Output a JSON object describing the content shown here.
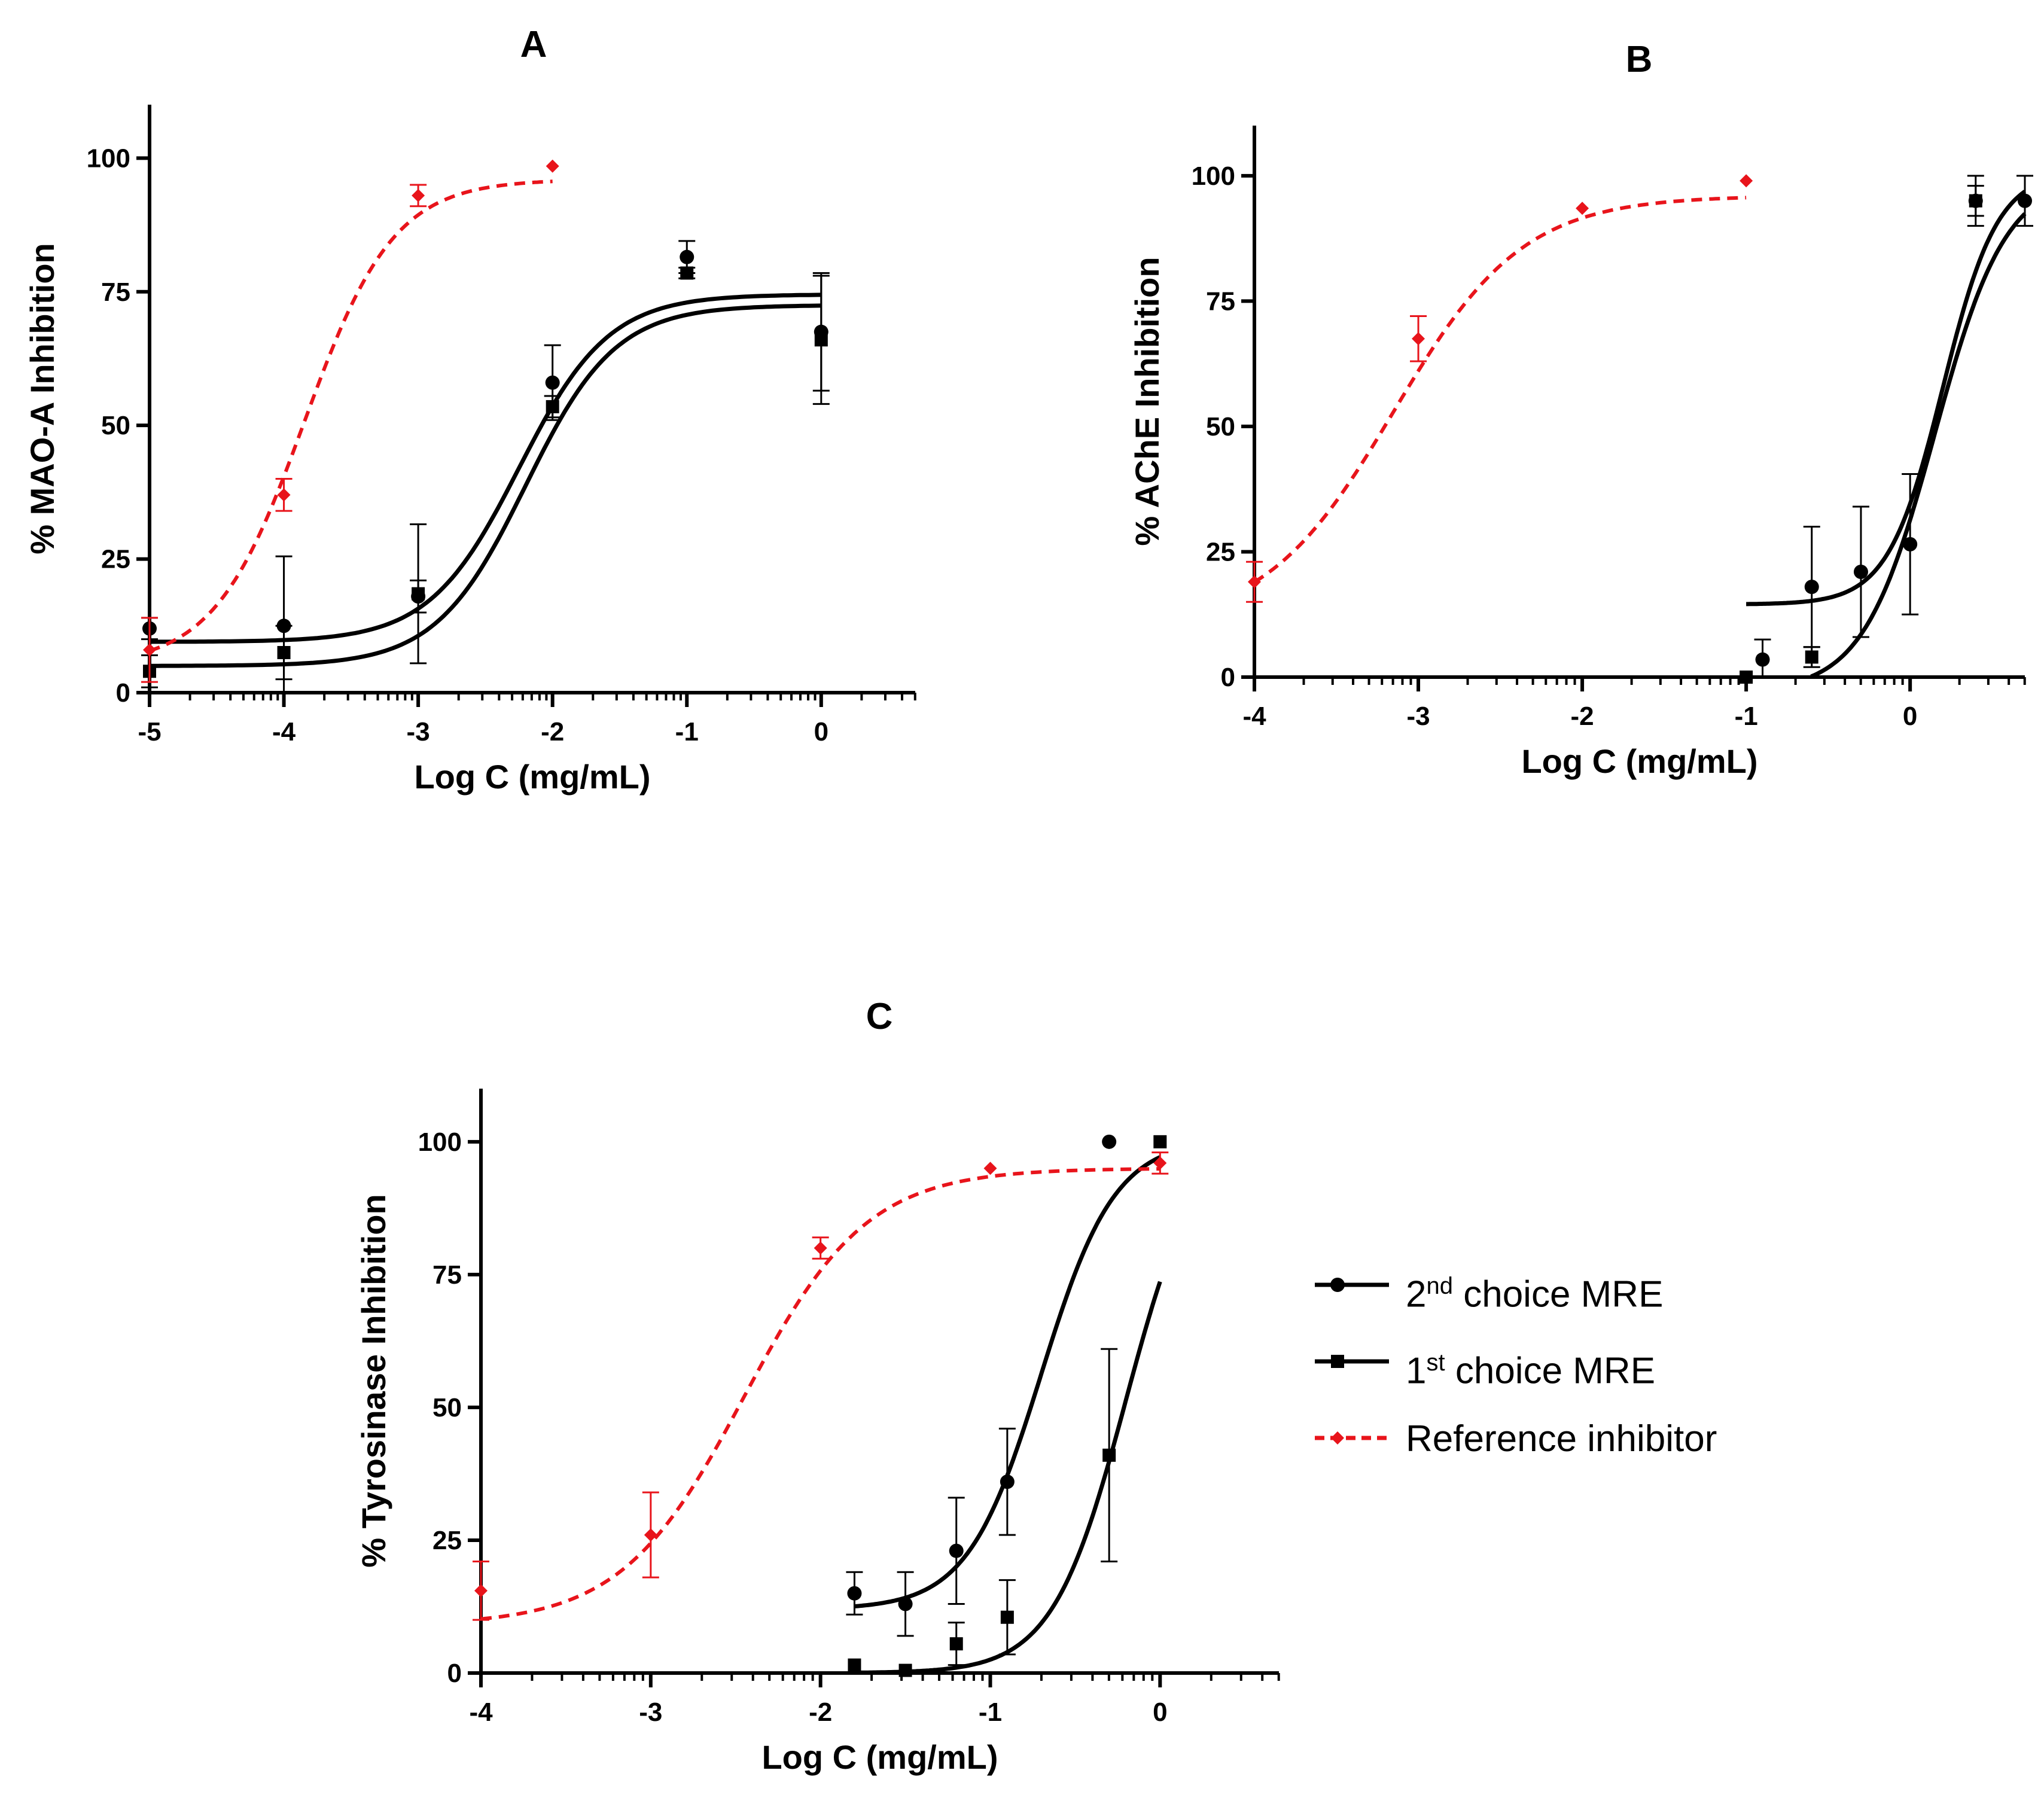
{
  "colors": {
    "sample": "#000000",
    "reference": "#e8141b"
  },
  "legend": {
    "items": [
      {
        "base": "2",
        "sup": "nd",
        "rest": " choice MRE",
        "marker": "circle-marker",
        "style": "solid"
      },
      {
        "base": "1",
        "sup": "st",
        "rest": " choice MRE",
        "marker": "square-marker",
        "style": "solid"
      },
      {
        "base": "Reference inhibitor",
        "sup": "",
        "rest": "",
        "marker": "diamond-marker",
        "style": "dashed"
      }
    ]
  },
  "chart_data": [
    {
      "id": "A",
      "type": "scatter",
      "title": "A",
      "xlabel": "Log C (mg/mL)",
      "ylabel": "% MAO-A Inhibition",
      "xlim": [
        -5,
        0.7
      ],
      "ylim": [
        0,
        110
      ],
      "xticks": [
        -5,
        -4,
        -3,
        -2,
        -1,
        0
      ],
      "xtick_labels": [
        "-5",
        "-4",
        "-3",
        "-2",
        "-1",
        "0"
      ],
      "yticks": [
        0,
        25,
        50,
        75,
        100
      ],
      "ytick_labels": [
        "0",
        "25",
        "50",
        "75",
        "100"
      ],
      "series": [
        {
          "name": "2nd choice MRE",
          "marker": "circle",
          "x": [
            -5,
            -4,
            -3,
            -2,
            -1,
            0
          ],
          "y": [
            12,
            12.5,
            18,
            58,
            81.5,
            67.5
          ],
          "err": [
            2,
            13,
            3,
            7,
            3,
            11
          ],
          "fit": {
            "bottom": 9.5,
            "top": 74.5,
            "logec50": -2.25,
            "hill": 1.3,
            "xmin": -5,
            "xmax": 0
          }
        },
        {
          "name": "1st choice MRE",
          "marker": "square",
          "x": [
            -5,
            -4,
            -3,
            -2,
            -1,
            0
          ],
          "y": [
            4,
            7.5,
            18.5,
            53.5,
            78.5,
            66
          ],
          "err": [
            3,
            5,
            13,
            2,
            1,
            12
          ],
          "fit": {
            "bottom": 5,
            "top": 72.5,
            "logec50": -2.2,
            "hill": 1.3,
            "xmin": -5,
            "xmax": 0
          }
        },
        {
          "name": "Reference inhibitor",
          "marker": "diamond",
          "x": [
            -5,
            -4,
            -3,
            -2
          ],
          "y": [
            8,
            37,
            93,
            98.5
          ],
          "err": [
            6,
            3,
            2,
            0
          ],
          "fit": {
            "bottom": 5,
            "top": 96,
            "logec50": -3.85,
            "hill": 1.3,
            "xmin": -5,
            "xmax": -2
          }
        }
      ]
    },
    {
      "id": "B",
      "type": "scatter",
      "title": "B",
      "xlabel": "Log C (mg/mL)",
      "ylabel": "% AChE Inhibition",
      "xlim": [
        -4,
        0.7
      ],
      "ylim": [
        0,
        110
      ],
      "xticks": [
        -4,
        -3,
        -2,
        -1,
        0
      ],
      "xtick_labels": [
        "-4",
        "-3",
        "-2",
        "-1",
        "0"
      ],
      "yticks": [
        0,
        25,
        50,
        75,
        100
      ],
      "ytick_labels": [
        "0",
        "25",
        "50",
        "75",
        "100"
      ],
      "series": [
        {
          "name": "2nd choice MRE",
          "marker": "circle",
          "x": [
            -0.9,
            -0.6,
            -0.3,
            0,
            0.4,
            0.7
          ],
          "y": [
            3.5,
            18,
            21,
            26.5,
            95,
            95
          ],
          "err": [
            4,
            12,
            13,
            14,
            5,
            5
          ],
          "fit": {
            "bottom": 14.5,
            "top": 101,
            "logec50": 0.2,
            "hill": 2.6,
            "xmin": -1,
            "xmax": 0.7
          }
        },
        {
          "name": "1st choice MRE",
          "marker": "square",
          "x": [
            -1,
            -0.6,
            0.4
          ],
          "y": [
            0,
            4,
            95
          ],
          "err": [
            0,
            2,
            3
          ],
          "fit": {
            "bottom": -3,
            "top": 100,
            "logec50": 0.15,
            "hill": 2,
            "xmin": -0.93,
            "xmax": 0.7
          }
        },
        {
          "name": "Reference inhibitor",
          "marker": "diamond",
          "x": [
            -4,
            -3,
            -2,
            -1
          ],
          "y": [
            19,
            67.5,
            93.5,
            99
          ],
          "err": [
            4,
            4.5,
            0,
            0
          ],
          "fit": {
            "bottom": 10,
            "top": 96,
            "logec50": -3.15,
            "hill": 1.1,
            "xmin": -4,
            "xmax": -1
          }
        }
      ]
    },
    {
      "id": "C",
      "type": "scatter",
      "title": "C",
      "xlabel": "Log C (mg/mL)",
      "ylabel": "% Tyrosinase Inhibition",
      "xlim": [
        -4,
        0.7
      ],
      "ylim": [
        0,
        110
      ],
      "xticks": [
        -4,
        -3,
        -2,
        -1,
        0
      ],
      "xtick_labels": [
        "-4",
        "-3",
        "-2",
        "-1",
        "0"
      ],
      "yticks": [
        0,
        25,
        50,
        75,
        100
      ],
      "ytick_labels": [
        "0",
        "25",
        "50",
        "75",
        "100"
      ],
      "series": [
        {
          "name": "2nd choice MRE",
          "marker": "circle",
          "x": [
            -1.8,
            -1.5,
            -1.2,
            -0.9,
            -0.3
          ],
          "y": [
            15,
            13,
            23,
            36,
            100
          ],
          "err": [
            4,
            6,
            10,
            10,
            0
          ],
          "fit": {
            "bottom": 12,
            "top": 100.5,
            "logec50": -0.7,
            "hill": 2,
            "xmin": -1.8,
            "xmax": 0
          }
        },
        {
          "name": "1st choice MRE",
          "marker": "square",
          "x": [
            -1.8,
            -1.5,
            -1.2,
            -0.9,
            -0.3,
            0
          ],
          "y": [
            1.5,
            0.5,
            5.5,
            10.5,
            41,
            100
          ],
          "err": [
            0,
            0,
            4,
            7,
            20,
            0
          ],
          "fit": {
            "bottom": 0,
            "top": 103,
            "logec50": -0.2,
            "hill": 2,
            "xmin": -1.8,
            "xmax": 0
          }
        },
        {
          "name": "Reference inhibitor",
          "marker": "diamond",
          "x": [
            -4,
            -3,
            -2,
            -1,
            0
          ],
          "y": [
            15.5,
            26,
            80,
            95,
            96
          ],
          "err": [
            5.5,
            8,
            2,
            0,
            2
          ],
          "fit": {
            "bottom": 9,
            "top": 95,
            "logec50": -2.45,
            "hill": 1.2,
            "xmin": -4,
            "xmax": 0
          }
        }
      ]
    }
  ]
}
